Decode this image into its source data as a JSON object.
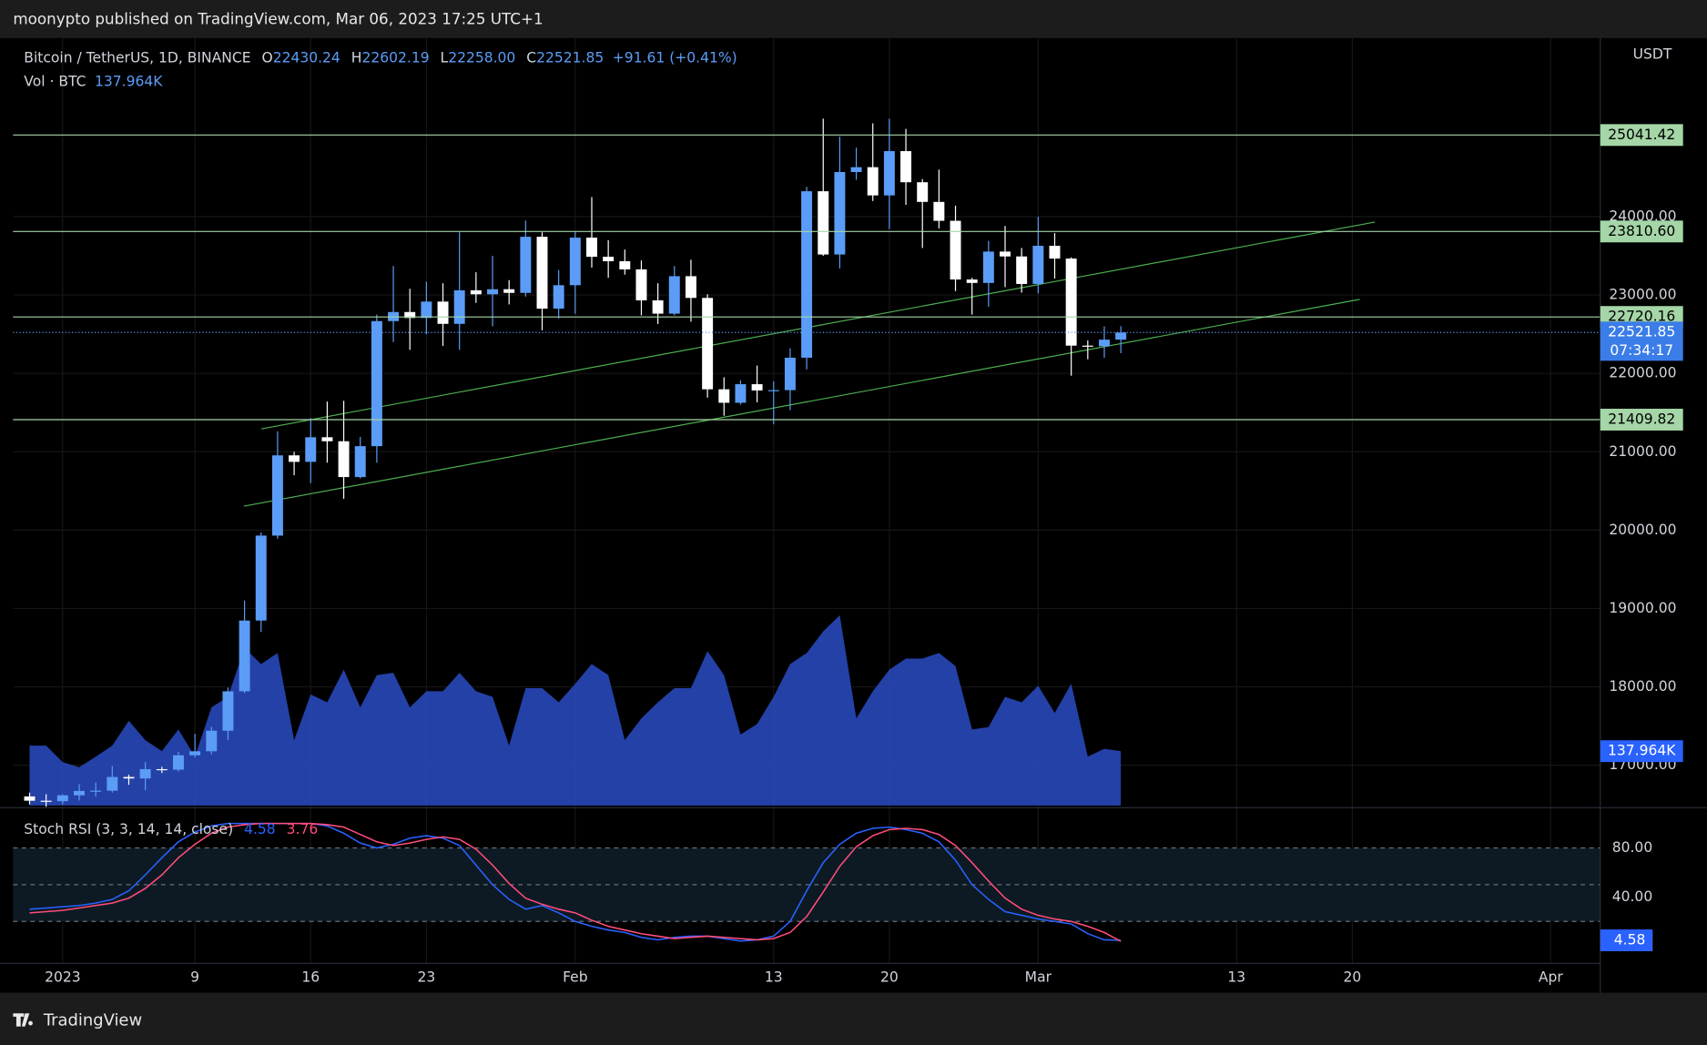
{
  "header": {
    "publisher": "moonypto published on TradingView.com, Mar 06, 2023 17:25 UTC+1"
  },
  "legend": {
    "symbol": "Bitcoin / TetherUS, 1D, BINANCE",
    "ohlc": [
      {
        "key": "O",
        "value": "22430.24"
      },
      {
        "key": "H",
        "value": "22602.19"
      },
      {
        "key": "L",
        "value": "22258.00"
      },
      {
        "key": "C",
        "value": "22521.85"
      }
    ],
    "change": "+91.61 (+0.41%)"
  },
  "chart_data": {
    "type": "candlestick",
    "currency": "USDT",
    "x": [
      "2022-12-30",
      "2022-12-31",
      "2023-01-01",
      "2023-01-02",
      "2023-01-03",
      "2023-01-04",
      "2023-01-05",
      "2023-01-06",
      "2023-01-07",
      "2023-01-08",
      "2023-01-09",
      "2023-01-10",
      "2023-01-11",
      "2023-01-12",
      "2023-01-13",
      "2023-01-14",
      "2023-01-15",
      "2023-01-16",
      "2023-01-17",
      "2023-01-18",
      "2023-01-19",
      "2023-01-20",
      "2023-01-21",
      "2023-01-22",
      "2023-01-23",
      "2023-01-24",
      "2023-01-25",
      "2023-01-26",
      "2023-01-27",
      "2023-01-28",
      "2023-01-29",
      "2023-01-30",
      "2023-01-31",
      "2023-02-01",
      "2023-02-02",
      "2023-02-03",
      "2023-02-04",
      "2023-02-05",
      "2023-02-06",
      "2023-02-07",
      "2023-02-08",
      "2023-02-09",
      "2023-02-10",
      "2023-02-11",
      "2023-02-12",
      "2023-02-13",
      "2023-02-14",
      "2023-02-15",
      "2023-02-16",
      "2023-02-17",
      "2023-02-18",
      "2023-02-19",
      "2023-02-20",
      "2023-02-21",
      "2023-02-22",
      "2023-02-23",
      "2023-02-24",
      "2023-02-25",
      "2023-02-26",
      "2023-02-27",
      "2023-02-28",
      "2023-03-01",
      "2023-03-02",
      "2023-03-03",
      "2023-03-04",
      "2023-03-05",
      "2023-03-06"
    ],
    "xlim": [
      "2022-12-29",
      "2023-04-04"
    ],
    "xticks": [
      {
        "value": "2023-01-01",
        "label": "2023"
      },
      {
        "value": "2023-01-09",
        "label": "9"
      },
      {
        "value": "2023-01-16",
        "label": "16"
      },
      {
        "value": "2023-01-23",
        "label": "23"
      },
      {
        "value": "2023-02-01",
        "label": "Feb"
      },
      {
        "value": "2023-02-13",
        "label": "13"
      },
      {
        "value": "2023-02-20",
        "label": "20"
      },
      {
        "value": "2023-03-01",
        "label": "Mar"
      },
      {
        "value": "2023-03-13",
        "label": "13"
      },
      {
        "value": "2023-03-20",
        "label": "20"
      },
      {
        "value": "2023-04-01",
        "label": "Apr"
      }
    ],
    "open": [
      16602,
      16547,
      16541,
      16616,
      16672,
      16675,
      16850,
      16831,
      16950,
      16943,
      17127,
      17178,
      17440,
      17943,
      18846,
      19930,
      20954,
      20871,
      21185,
      21134,
      20677,
      21071,
      22667,
      22783,
      22707,
      22916,
      22632,
      23060,
      23009,
      23074,
      23027,
      23743,
      22826,
      23125,
      23732,
      23488,
      23431,
      23327,
      22932,
      22762,
      23240,
      22963,
      21797,
      21625,
      21862,
      21782,
      21786,
      22200,
      24324,
      23517,
      24569,
      24631,
      24271,
      24836,
      24439,
      24188,
      23947,
      23198,
      23154,
      23554,
      23492,
      23141,
      23628,
      23465,
      22354,
      22346,
      22430.24
    ],
    "high": [
      16650,
      16630,
      16630,
      16760,
      16780,
      16990,
      16880,
      17040,
      16980,
      17170,
      17400,
      17490,
      17990,
      19100,
      19970,
      21260,
      21000,
      21430,
      21640,
      21650,
      21190,
      22750,
      23370,
      23080,
      23170,
      23150,
      23800,
      23290,
      23500,
      23190,
      23950,
      23800,
      23320,
      23810,
      24250,
      23700,
      23580,
      23440,
      23150,
      23370,
      23450,
      23010,
      21950,
      21910,
      22100,
      21900,
      22320,
      24380,
      25250,
      25020,
      24880,
      25190,
      25250,
      25120,
      24480,
      24600,
      24140,
      23220,
      23690,
      23880,
      23600,
      24000,
      23790,
      23480,
      22420,
      22600,
      22602.19
    ],
    "low": [
      16500,
      16470,
      16500,
      16550,
      16600,
      16650,
      16750,
      16680,
      16900,
      16920,
      17100,
      17140,
      17320,
      17920,
      18700,
      19890,
      20700,
      20600,
      20860,
      20400,
      20660,
      20860,
      22400,
      22300,
      22500,
      22350,
      22300,
      22900,
      22600,
      22880,
      22980,
      22550,
      22700,
      22760,
      23350,
      23220,
      23260,
      22740,
      22630,
      22740,
      22660,
      21690,
      21460,
      21600,
      21630,
      21350,
      21530,
      22050,
      23500,
      23340,
      24470,
      24200,
      23840,
      24150,
      23600,
      23850,
      23050,
      22750,
      22850,
      23100,
      23030,
      23020,
      23210,
      21970,
      22180,
      22200,
      22258
    ],
    "close": [
      16547,
      16542,
      16616,
      16672,
      16675,
      16850,
      16831,
      16950,
      16943,
      17127,
      17178,
      17440,
      17943,
      18846,
      19930,
      20954,
      20871,
      21185,
      21134,
      20677,
      21071,
      22667,
      22783,
      22707,
      22916,
      22632,
      23060,
      23009,
      23074,
      23027,
      23743,
      22826,
      23125,
      23732,
      23488,
      23431,
      23327,
      22932,
      22762,
      23240,
      22963,
      21797,
      21625,
      21862,
      21782,
      21786,
      22200,
      24324,
      23517,
      24569,
      24631,
      24271,
      24836,
      24439,
      24188,
      23947,
      23198,
      23154,
      23554,
      23492,
      23141,
      23628,
      23465,
      22354,
      22346,
      22430,
      22521.85
    ],
    "up_color": "#5b9cf6",
    "down_color": "#ffffff",
    "ylim": [
      16472,
      26278
    ],
    "yticks": [
      {
        "value": 17000,
        "label": "17000.00"
      },
      {
        "value": 18000,
        "label": "18000.00"
      },
      {
        "value": 19000,
        "label": "19000.00"
      },
      {
        "value": 20000,
        "label": "20000.00"
      },
      {
        "value": 21000,
        "label": "21000.00"
      },
      {
        "value": 22000,
        "label": "22000.00"
      },
      {
        "value": 23000,
        "label": "23000.00"
      },
      {
        "value": 24000,
        "label": "24000.00"
      }
    ],
    "levels": [
      25041.42,
      {
        "value": 23810.6,
        "label": "23810.60"
      },
      22720.16,
      21409.82
    ],
    "level_color": "#a5d6a7",
    "countdown": "07:34:17",
    "volume": {
      "type": "area",
      "title": "Vol · BTC",
      "color": "#2a4cc4",
      "values": [
        152,
        152,
        110,
        97,
        124,
        152,
        215,
        166,
        138,
        193,
        124,
        249,
        276,
        400,
        359,
        387,
        166,
        282,
        262,
        345,
        249,
        331,
        337,
        249,
        290,
        290,
        337,
        290,
        276,
        152,
        298,
        298,
        262,
        309,
        359,
        331,
        166,
        221,
        262,
        298,
        298,
        392,
        331,
        180,
        207,
        276,
        359,
        387,
        442,
        483,
        221,
        290,
        345,
        373,
        373,
        387,
        354,
        193,
        199,
        276,
        262,
        304,
        235,
        309,
        124,
        144,
        137.964
      ],
      "last_label": "137.964K",
      "ylim": [
        0,
        1948
      ]
    },
    "stoch_rsi": {
      "type": "line",
      "title": "Stoch RSI (3, 3, 14, 14, close)",
      "series": [
        {
          "color": "#2962ff",
          "values": [
            30,
            31,
            32,
            33,
            35,
            38,
            45,
            58,
            72,
            85,
            93,
            98,
            100,
            100,
            100,
            100,
            100,
            100,
            98,
            92,
            84,
            80,
            83,
            88,
            90,
            88,
            82,
            66,
            50,
            38,
            30,
            33,
            27,
            20,
            16,
            13,
            11,
            7,
            5,
            7,
            8,
            8,
            6,
            4,
            5,
            8,
            20,
            45,
            68,
            83,
            92,
            96,
            97,
            95,
            92,
            85,
            70,
            50,
            38,
            28,
            25,
            22,
            20,
            18,
            10,
            5,
            4.58
          ]
        },
        {
          "color": "#ff4d7a",
          "values": [
            27,
            28,
            29,
            31,
            33,
            35,
            39,
            47,
            58,
            72,
            83,
            92,
            97,
            99,
            100,
            100,
            100,
            100,
            99,
            97,
            91,
            85,
            82,
            84,
            87,
            89,
            87,
            79,
            66,
            51,
            39,
            34,
            30,
            27,
            21,
            16,
            13,
            10,
            8,
            6,
            7,
            8,
            7,
            6,
            5,
            6,
            11,
            24,
            44,
            65,
            81,
            90,
            95,
            96,
            95,
            91,
            82,
            68,
            53,
            39,
            30,
            25,
            22,
            20,
            16,
            11,
            3.76
          ]
        }
      ],
      "ylim": [
        -14.2,
        110.2
      ],
      "yticks": [
        {
          "value": 80,
          "label": "80.00"
        },
        {
          "value": 40,
          "label": "40.00"
        }
      ],
      "bands": [
        20,
        50,
        80
      ]
    }
  },
  "footer": {
    "brand": "TradingView"
  }
}
